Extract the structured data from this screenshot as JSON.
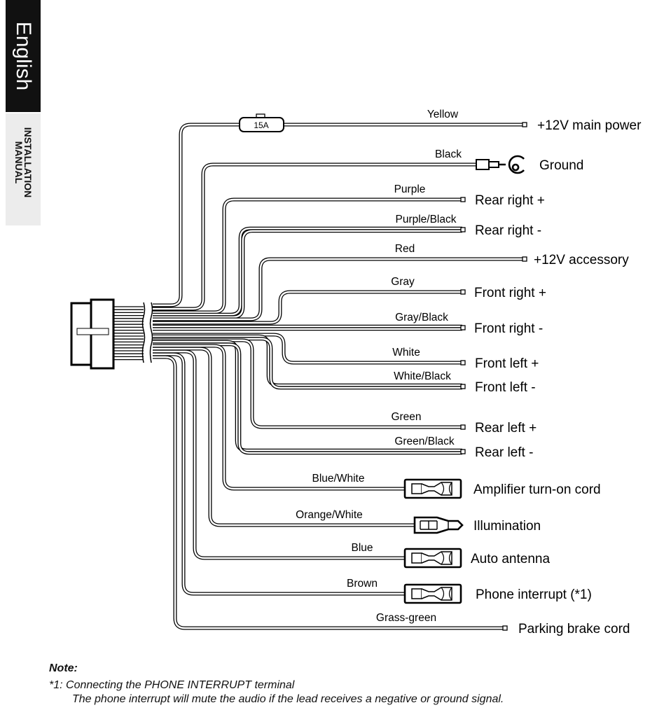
{
  "side_tab": {
    "language": "English",
    "section": "INSTALLATION MANUAL"
  },
  "fuse_rating": "15A",
  "wires": [
    {
      "color": "Yellow",
      "function": "+12V main power",
      "terminal": "plain"
    },
    {
      "color": "Black",
      "function": "Ground",
      "terminal": "ring"
    },
    {
      "color": "Purple",
      "function": "Rear right +",
      "terminal": "plain"
    },
    {
      "color": "Purple/Black",
      "function": "Rear right -",
      "terminal": "plain"
    },
    {
      "color": "Red",
      "function": "+12V accessory",
      "terminal": "plain"
    },
    {
      "color": "Gray",
      "function": "Front right +",
      "terminal": "plain"
    },
    {
      "color": "Gray/Black",
      "function": "Front right -",
      "terminal": "plain"
    },
    {
      "color": "White",
      "function": "Front left +",
      "terminal": "plain"
    },
    {
      "color": "White/Black",
      "function": "Front left -",
      "terminal": "plain"
    },
    {
      "color": "Green",
      "function": "Rear left +",
      "terminal": "plain"
    },
    {
      "color": "Green/Black",
      "function": "Rear left -",
      "terminal": "plain"
    },
    {
      "color": "Blue/White",
      "function": "Amplifier turn-on cord",
      "terminal": "female"
    },
    {
      "color": "Orange/White",
      "function": "Illumination",
      "terminal": "male"
    },
    {
      "color": "Blue",
      "function": "Auto antenna",
      "terminal": "female"
    },
    {
      "color": "Brown",
      "function": "Phone interrupt (*1)",
      "terminal": "female"
    },
    {
      "color": "Grass-green",
      "function": "Parking brake cord",
      "terminal": "plain"
    }
  ],
  "note": {
    "title": "Note:",
    "line1": "*1: Connecting the PHONE INTERRUPT terminal",
    "line2": "The phone interrupt will mute the audio if the lead receives a negative or ground signal."
  }
}
